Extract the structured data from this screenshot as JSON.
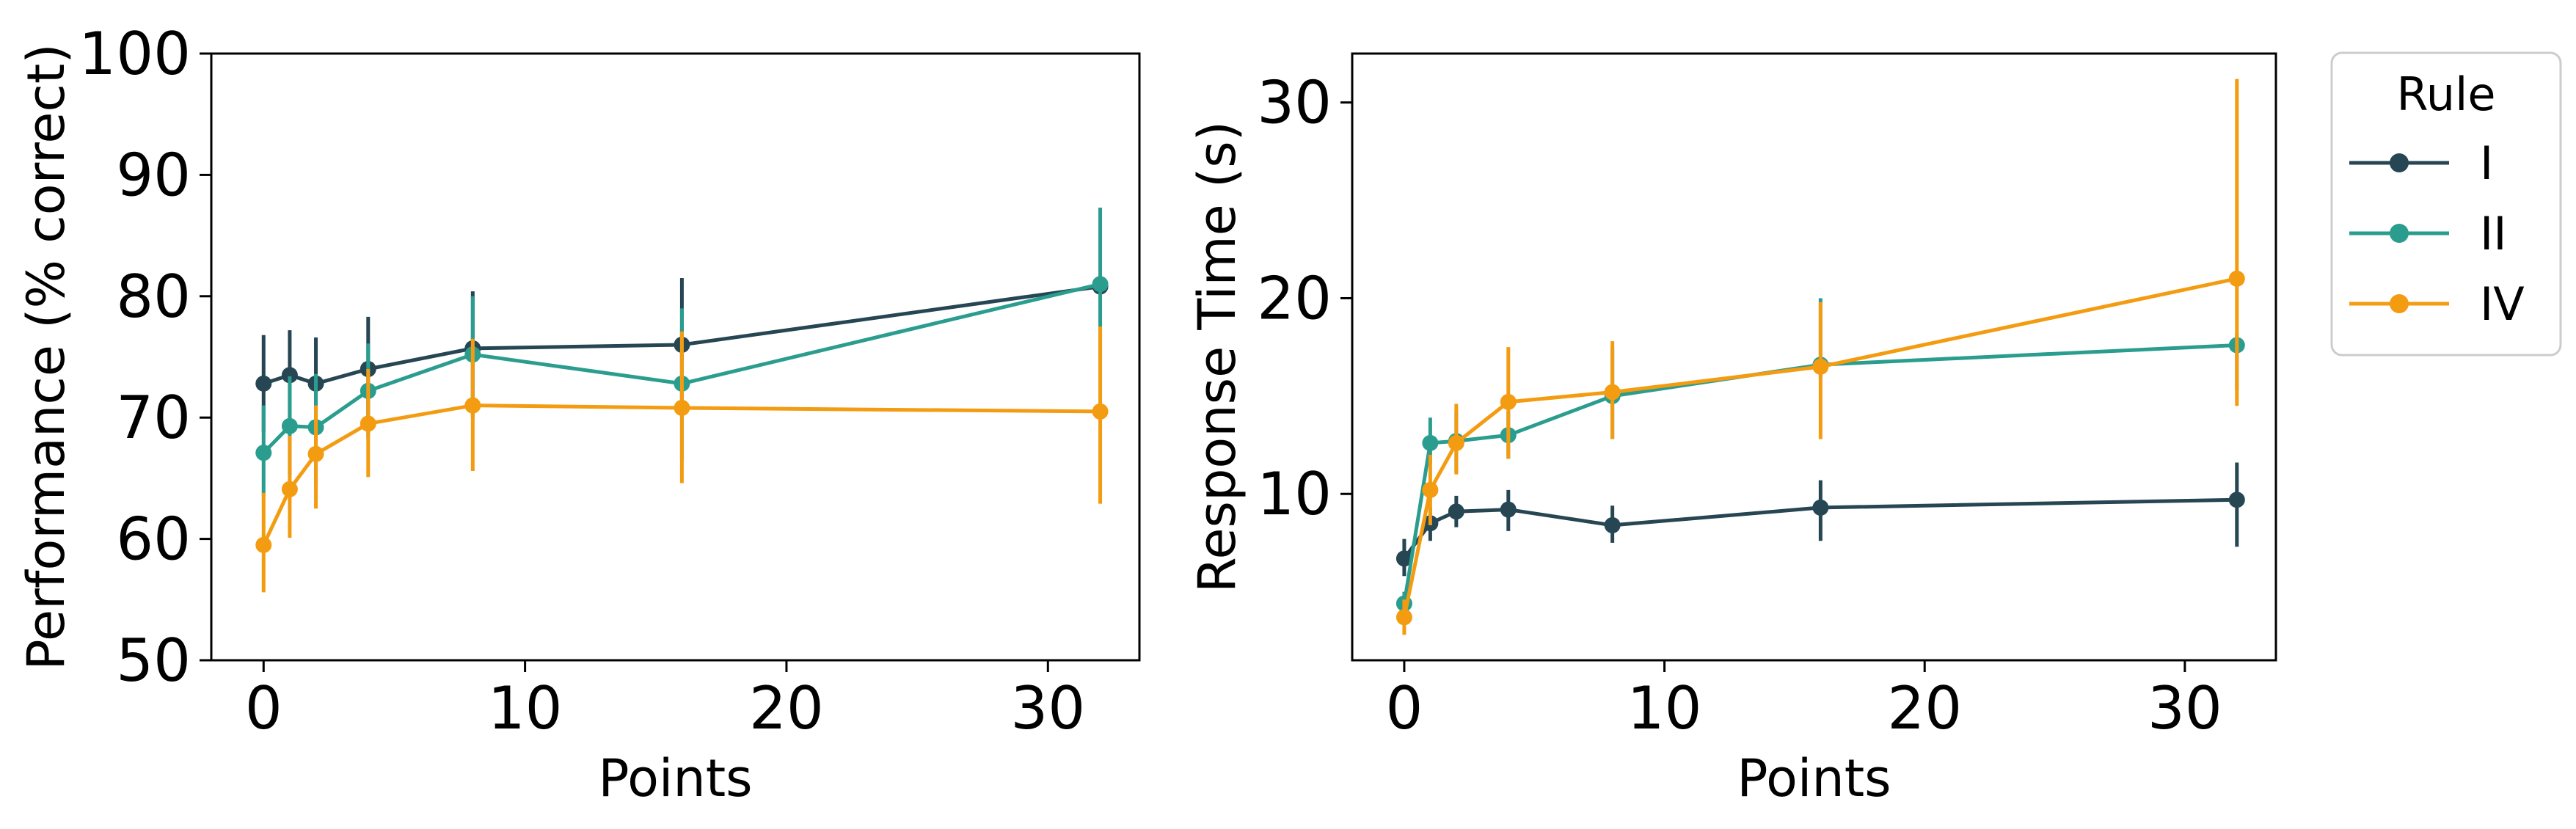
{
  "legend": {
    "title": "Rule",
    "placement": "outside-right",
    "entries": [
      {
        "label": "I",
        "color": "#264653"
      },
      {
        "label": "II",
        "color": "#2a9d8f"
      },
      {
        "label": "IV",
        "color": "#f39c12"
      }
    ]
  },
  "chart_data": [
    {
      "type": "line",
      "xlabel": "Points",
      "ylabel": "Performance (% correct)",
      "xlim": [
        -2,
        33.5
      ],
      "ylim": [
        50,
        100
      ],
      "xticks": [
        0,
        10,
        20,
        30
      ],
      "yticks": [
        50,
        60,
        70,
        80,
        90,
        100
      ],
      "grid": false,
      "x": [
        0,
        1,
        2,
        4,
        8,
        16,
        32
      ],
      "series": [
        {
          "name": "I",
          "color": "#264653",
          "values": [
            72.8,
            73.5,
            72.8,
            74.0,
            75.7,
            76.0,
            80.8
          ],
          "error_low": [
            68.8,
            69.8,
            69.0,
            69.8,
            71.0,
            70.5,
            80.8
          ],
          "error_high": [
            76.8,
            77.2,
            76.6,
            78.3,
            80.4,
            81.5,
            80.8
          ]
        },
        {
          "name": "II",
          "color": "#2a9d8f",
          "values": [
            67.1,
            69.3,
            69.2,
            72.2,
            75.2,
            72.8,
            81.0
          ],
          "error_low": [
            63.5,
            65.3,
            64.5,
            68.3,
            70.0,
            66.5,
            74.8
          ],
          "error_high": [
            71.0,
            73.4,
            73.6,
            76.1,
            80.0,
            79.0,
            87.3
          ]
        },
        {
          "name": "IV",
          "color": "#f39c12",
          "values": [
            59.5,
            64.1,
            67.0,
            69.5,
            71.0,
            70.8,
            70.5
          ],
          "error_low": [
            55.6,
            60.1,
            62.5,
            65.1,
            65.6,
            64.6,
            62.9
          ],
          "error_high": [
            63.8,
            68.5,
            71.0,
            74.0,
            76.5,
            77.1,
            77.5
          ]
        }
      ]
    },
    {
      "type": "line",
      "xlabel": "Points",
      "ylabel": "Response Time (s)",
      "xlim": [
        -2,
        33.5
      ],
      "ylim": [
        1.5,
        32.5
      ],
      "xticks": [
        0,
        10,
        20,
        30
      ],
      "yticks": [
        10,
        20,
        30
      ],
      "grid": false,
      "x": [
        0,
        1,
        2,
        4,
        8,
        16,
        32
      ],
      "series": [
        {
          "name": "I",
          "color": "#264653",
          "values": [
            6.7,
            8.5,
            9.1,
            9.2,
            8.4,
            9.3,
            9.7
          ],
          "error_low": [
            5.8,
            7.6,
            8.3,
            8.1,
            7.5,
            7.6,
            7.3
          ],
          "error_high": [
            7.7,
            9.3,
            9.9,
            10.2,
            9.4,
            10.7,
            11.6
          ]
        },
        {
          "name": "II",
          "color": "#2a9d8f",
          "values": [
            4.4,
            12.6,
            12.7,
            13.0,
            15.0,
            16.6,
            17.6
          ],
          "error_low": [
            3.8,
            11.5,
            11.1,
            11.8,
            12.8,
            15.9,
            15.3
          ],
          "error_high": [
            5.0,
            13.9,
            14.2,
            14.2,
            17.5,
            20.0,
            18.2
          ]
        },
        {
          "name": "IV",
          "color": "#f39c12",
          "values": [
            3.7,
            10.2,
            12.6,
            14.7,
            15.2,
            16.5,
            21.0
          ],
          "error_low": [
            2.8,
            8.4,
            11.0,
            11.8,
            12.8,
            12.8,
            14.5
          ],
          "error_high": [
            4.6,
            12.0,
            14.6,
            17.5,
            17.8,
            19.8,
            31.2
          ]
        }
      ]
    }
  ]
}
